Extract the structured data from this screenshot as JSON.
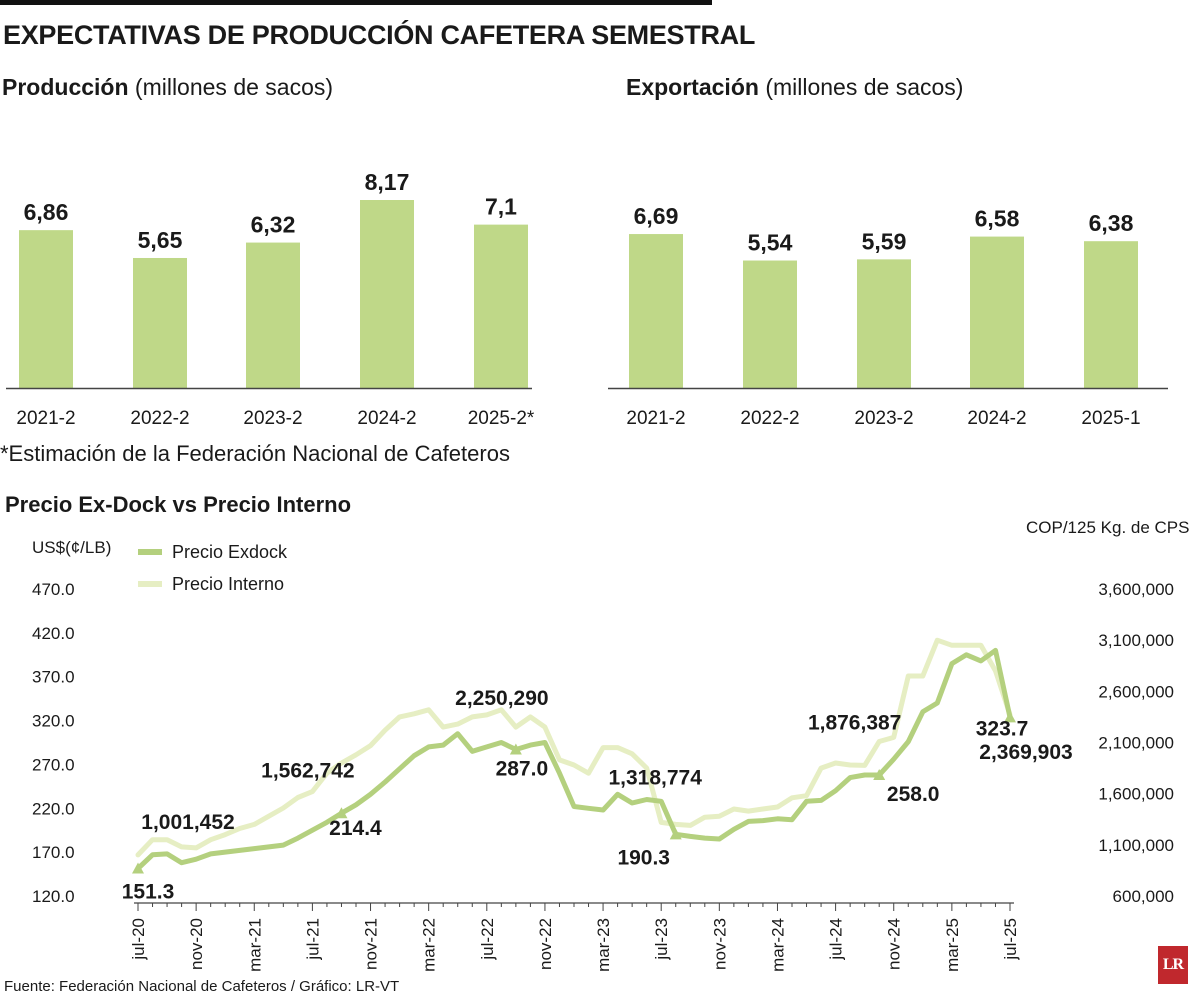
{
  "header": {
    "title": "EXPECTATIVAS DE PRODUCCIÓN CAFETERA SEMESTRAL"
  },
  "production": {
    "title_bold": "Producción",
    "title_unit": "(millones de sacos)"
  },
  "exports": {
    "title_bold": "Exportación",
    "title_unit": "(millones de sacos)"
  },
  "note": "*Estimación de la Federación Nacional de Cafeteros",
  "price_section": {
    "title": "Precio Ex-Dock vs Precio Interno",
    "left_unit": "US$(¢/LB)",
    "right_unit": "COP/125 Kg. de CPS",
    "legend": [
      {
        "label": "Precio Exdock",
        "color": "#b4d07e"
      },
      {
        "label": "Precio Interno",
        "color": "#e6eec3"
      }
    ]
  },
  "source": "Fuente: Federación Nacional de Cafeteros / Gráfico: LR-VT",
  "logo": "LR",
  "colors": {
    "bar": "#bfd888",
    "exdock": "#b4d07e",
    "interno": "#e6eec3",
    "axis": "#444444"
  },
  "chart_data": [
    {
      "type": "bar",
      "title": "Producción",
      "categories": [
        "2021-2",
        "2022-2",
        "2023-2",
        "2024-2",
        "2025-2*"
      ],
      "values": [
        6.86,
        5.65,
        6.32,
        8.17,
        7.1
      ],
      "value_labels": [
        "6,86",
        "5,65",
        "6,32",
        "8,17",
        "7,1"
      ],
      "ylim": [
        0,
        8.5
      ]
    },
    {
      "type": "bar",
      "title": "Exportación",
      "categories": [
        "2021-2",
        "2022-2",
        "2023-2",
        "2024-2",
        "2025-1"
      ],
      "values": [
        6.69,
        5.54,
        5.59,
        6.58,
        6.38
      ],
      "value_labels": [
        "6,69",
        "5,54",
        "5,59",
        "6,58",
        "6,38"
      ],
      "ylim": [
        0,
        8.5
      ]
    },
    {
      "type": "line",
      "title": "Precio Ex-Dock vs Precio Interno",
      "x_ticks": [
        "jul-20",
        "nov-20",
        "mar-21",
        "jul-21",
        "nov-21",
        "mar-22",
        "jul-22",
        "nov-22",
        "mar-23",
        "jul-23",
        "nov-23",
        "mar-24",
        "jul-24",
        "nov-24",
        "mar-25",
        "jul-25"
      ],
      "x_count": 61,
      "y_left_ticks": [
        "470.0",
        "420.0",
        "370.0",
        "320.0",
        "270.0",
        "220.0",
        "170.0",
        "120.0"
      ],
      "y_left_range": [
        120,
        470
      ],
      "y_right_ticks": [
        "3,600,000",
        "3,100,000",
        "2,600,000",
        "2,100,000",
        "1,600,000",
        "1,100,000",
        "600,000"
      ],
      "y_right_range": [
        600000,
        3600000
      ],
      "series": [
        {
          "name": "Precio Exdock",
          "axis": "left",
          "values": [
            151.3,
            167,
            168,
            158,
            162,
            168,
            170,
            172,
            174,
            176,
            178,
            186,
            195,
            204,
            214.4,
            224,
            236,
            250,
            265,
            280,
            290,
            292,
            305,
            285,
            290,
            295,
            287,
            292,
            295,
            260,
            222,
            220,
            218,
            236,
            226,
            230,
            228,
            190.3,
            188,
            186,
            185,
            196,
            205,
            206,
            208,
            207,
            228,
            229,
            240,
            255,
            258,
            258,
            276,
            296,
            330,
            340,
            385,
            395,
            388,
            400,
            323.7
          ]
        },
        {
          "name": "Precio Interno",
          "axis": "right",
          "values": [
            1001452,
            1150000,
            1150000,
            1080000,
            1070000,
            1150000,
            1200000,
            1260000,
            1300000,
            1380000,
            1460000,
            1562742,
            1620000,
            1800000,
            1900000,
            1980000,
            2070000,
            2220000,
            2350000,
            2380000,
            2420000,
            2250000,
            2280000,
            2350000,
            2370000,
            2420000,
            2250290,
            2350000,
            2250000,
            1930000,
            1880000,
            1800000,
            2050000,
            2050000,
            1990000,
            1850000,
            1318774,
            1300000,
            1290000,
            1370000,
            1380000,
            1450000,
            1430000,
            1450000,
            1470000,
            1560000,
            1580000,
            1850000,
            1900000,
            1880000,
            1876387,
            2110000,
            2150000,
            2750000,
            2750000,
            3100000,
            3050000,
            3050000,
            3050000,
            2800000,
            2369903
          ]
        }
      ],
      "annotations": [
        {
          "text": "151.3",
          "series": 0,
          "index": 0
        },
        {
          "text": "214.4",
          "series": 0,
          "index": 14
        },
        {
          "text": "287.0",
          "series": 0,
          "index": 26
        },
        {
          "text": "190.3",
          "series": 0,
          "index": 37
        },
        {
          "text": "258.0",
          "series": 0,
          "index": 51
        },
        {
          "text": "323.7",
          "series": 0,
          "index": 60
        },
        {
          "text": "1,001,452",
          "series": 1,
          "index": 0
        },
        {
          "text": "1,562,742",
          "series": 1,
          "index": 11
        },
        {
          "text": "2,250,290",
          "series": 1,
          "index": 26
        },
        {
          "text": "1,318,774",
          "series": 1,
          "index": 36
        },
        {
          "text": "1,876,387",
          "series": 1,
          "index": 50
        },
        {
          "text": "2,369,903",
          "series": 1,
          "index": 60
        }
      ]
    }
  ]
}
